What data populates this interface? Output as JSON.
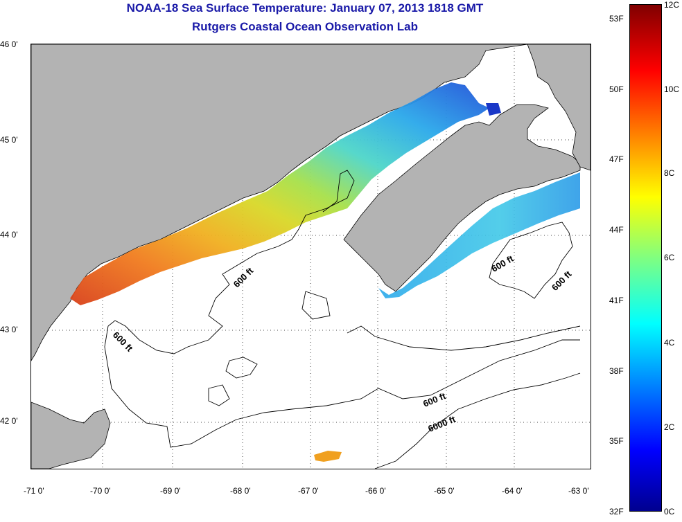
{
  "header": {
    "title": "NOAA-18 Sea Surface Temperature:  January 07, 2013 1818 GMT",
    "subtitle": "Rutgers Coastal Ocean Observation Lab"
  },
  "axes": {
    "lat_labels": [
      "46 0'",
      "45 0'",
      "44 0'",
      "43 0'",
      "42 0'"
    ],
    "lon_labels": [
      "-71 0'",
      "-70 0'",
      "-69 0'",
      "-68 0'",
      "-67 0'",
      "-66 0'",
      "-65 0'",
      "-64 0'",
      "-63 0'"
    ]
  },
  "contours": {
    "label_600": "600 ft",
    "label_6000": "6000 ft"
  },
  "colorbar": {
    "fahrenheit": [
      "53F",
      "50F",
      "47F",
      "44F",
      "41F",
      "38F",
      "35F",
      "32F"
    ],
    "celsius": [
      "12C",
      "10C",
      "8C",
      "6C",
      "4C",
      "2C",
      "0C"
    ]
  },
  "colors": {
    "land": "#b3b3b3",
    "title": "#1a1aa8"
  }
}
